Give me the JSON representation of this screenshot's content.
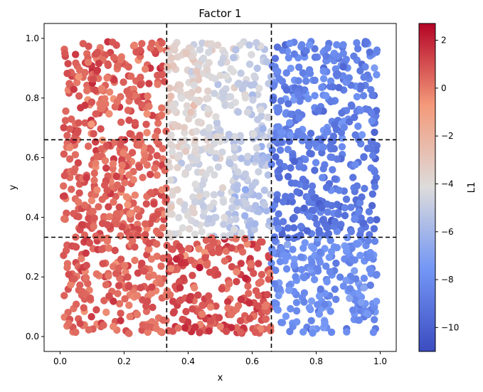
{
  "chart_data": {
    "type": "scatter",
    "title": "Factor 1",
    "xlabel": "x",
    "ylabel": "y",
    "xlim": [
      -0.05,
      1.05
    ],
    "ylim": [
      -0.05,
      1.05
    ],
    "xticks": [
      "0.0",
      "0.2",
      "0.4",
      "0.6",
      "0.8",
      "1.0"
    ],
    "yticks": [
      "0.0",
      "0.2",
      "0.4",
      "0.6",
      "0.8",
      "1.0"
    ],
    "grid": false,
    "reference_lines": {
      "vertical_x": [
        0.333,
        0.66
      ],
      "horizontal_y": [
        0.333,
        0.66
      ],
      "style": "dashed",
      "color": "#000000"
    },
    "colormap": "coolwarm",
    "colorbar": {
      "label": "L1",
      "range": [
        -11,
        2.7
      ],
      "ticks": [
        "2",
        "0",
        "−2",
        "−4",
        "−6",
        "−8",
        "−10"
      ]
    },
    "regions": [
      {
        "x_range": [
          0.0,
          0.333
        ],
        "y_range": [
          0.0,
          0.333
        ],
        "typical_value": 0.5
      },
      {
        "x_range": [
          0.333,
          0.66
        ],
        "y_range": [
          0.0,
          0.333
        ],
        "typical_value": 0.8
      },
      {
        "x_range": [
          0.66,
          1.0
        ],
        "y_range": [
          0.0,
          0.333
        ],
        "typical_value": -8.0
      },
      {
        "x_range": [
          0.0,
          0.333
        ],
        "y_range": [
          0.333,
          0.66
        ],
        "typical_value": 0.5
      },
      {
        "x_range": [
          0.333,
          0.66
        ],
        "y_range": [
          0.333,
          0.66
        ],
        "typical_value": -4.5
      },
      {
        "x_range": [
          0.66,
          1.0
        ],
        "y_range": [
          0.333,
          0.66
        ],
        "typical_value": -9.0
      },
      {
        "x_range": [
          0.0,
          0.333
        ],
        "y_range": [
          0.66,
          1.0
        ],
        "typical_value": 0.6
      },
      {
        "x_range": [
          0.333,
          0.66
        ],
        "y_range": [
          0.66,
          1.0
        ],
        "typical_value": -4.0
      },
      {
        "x_range": [
          0.66,
          1.0
        ],
        "y_range": [
          0.66,
          1.0
        ],
        "typical_value": -8.5
      }
    ],
    "approx_point_count": 2000
  }
}
